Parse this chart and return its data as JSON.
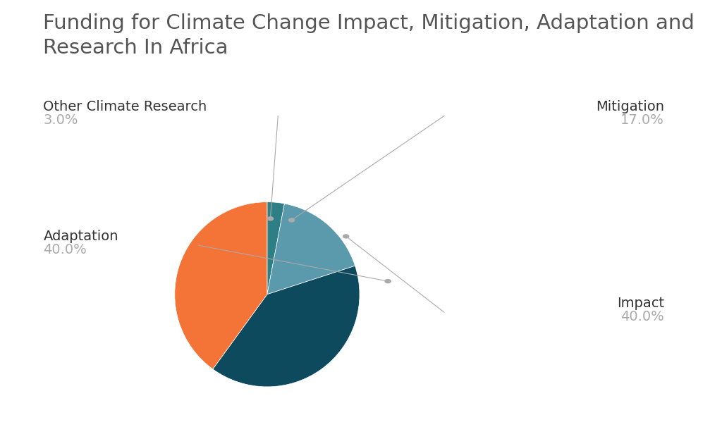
{
  "title": "Funding for Climate Change Impact, Mitigation, Adaptation and\nResearch In Africa",
  "title_fontsize": 21,
  "title_color": "#555555",
  "slices": [
    {
      "label": "Other Climate Research",
      "value": 3.0,
      "color": "#2e7f85"
    },
    {
      "label": "Mitigation",
      "value": 17.0,
      "color": "#5b9aac"
    },
    {
      "label": "Impact",
      "value": 40.0,
      "color": "#0d4a5e"
    },
    {
      "label": "Adaptation",
      "value": 40.0,
      "color": "#f47336"
    }
  ],
  "label_color": "#333333",
  "pct_color": "#aaaaaa",
  "label_fontsize": 14,
  "pct_fontsize": 14,
  "background_color": "#ffffff",
  "startangle": 90,
  "line_color": "#aaaaaa",
  "dot_color": "#aaaaaa"
}
